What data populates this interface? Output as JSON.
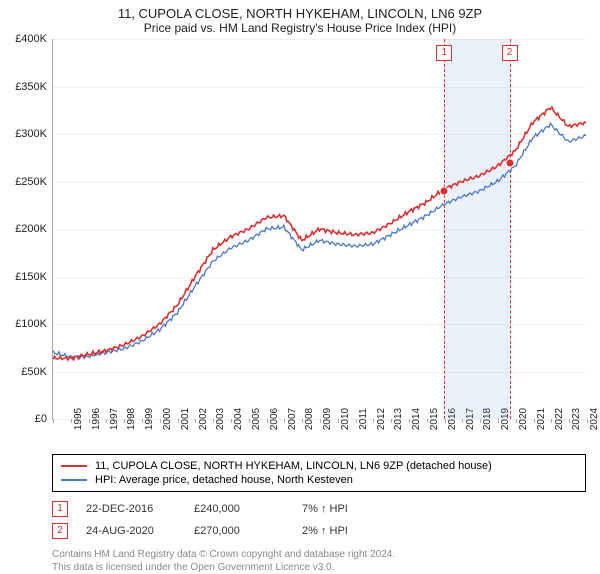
{
  "title_line1": "11, CUPOLA CLOSE, NORTH HYKEHAM, LINCOLN, LN6 9ZP",
  "title_line2": "Price paid vs. HM Land Registry's House Price Index (HPI)",
  "chart": {
    "type": "line",
    "x_start_year": 1995,
    "x_end_year": 2025,
    "xtick_years": [
      1995,
      1996,
      1997,
      1998,
      1999,
      2000,
      2001,
      2002,
      2003,
      2004,
      2005,
      2006,
      2007,
      2008,
      2009,
      2010,
      2011,
      2012,
      2013,
      2014,
      2015,
      2016,
      2017,
      2018,
      2019,
      2020,
      2021,
      2022,
      2023,
      2024,
      2025
    ],
    "ylim": [
      0,
      400000
    ],
    "ytick_step": 50000,
    "ytick_labels": [
      "£0",
      "£50K",
      "£100K",
      "£150K",
      "£200K",
      "£250K",
      "£300K",
      "£350K",
      "£400K"
    ],
    "grid_color": "#f0f0f0",
    "background_color": "#ffffff",
    "axis_color": "#888888",
    "tick_fontsize": 10,
    "series": [
      {
        "name": "11, CUPOLA CLOSE, NORTH HYKEHAM, LINCOLN, LN6 9ZP (detached house)",
        "color": "#d93030",
        "line_width": 1.6,
        "y_by_year": {
          "1995": 64000,
          "1996": 64000,
          "1997": 68000,
          "1998": 72000,
          "1999": 78000,
          "2000": 87000,
          "2001": 100000,
          "2002": 120000,
          "2003": 150000,
          "2004": 178000,
          "2005": 192000,
          "2006": 200000,
          "2007": 212000,
          "2008": 214000,
          "2009": 188000,
          "2010": 200000,
          "2011": 196000,
          "2012": 194000,
          "2013": 196000,
          "2014": 206000,
          "2015": 218000,
          "2016": 228000,
          "2017": 242000,
          "2018": 250000,
          "2019": 256000,
          "2020": 266000,
          "2021": 282000,
          "2022": 312000,
          "2023": 328000,
          "2024": 308000,
          "2025": 312000
        }
      },
      {
        "name": "HPI: Average price, detached house, North Kesteven",
        "color": "#4a78c8",
        "line_width": 1.3,
        "y_by_year": {
          "1995": 70000,
          "1996": 65000,
          "1997": 66000,
          "1998": 70000,
          "1999": 74000,
          "2000": 82000,
          "2001": 94000,
          "2002": 112000,
          "2003": 140000,
          "2004": 166000,
          "2005": 180000,
          "2006": 188000,
          "2007": 200000,
          "2008": 202000,
          "2009": 178000,
          "2010": 188000,
          "2011": 184000,
          "2012": 182000,
          "2013": 184000,
          "2014": 194000,
          "2015": 204000,
          "2016": 214000,
          "2017": 226000,
          "2018": 234000,
          "2019": 240000,
          "2020": 250000,
          "2021": 266000,
          "2022": 296000,
          "2023": 310000,
          "2024": 292000,
          "2025": 298000
        }
      }
    ],
    "shaded_band": {
      "from_year": 2016.98,
      "to_year": 2020.65,
      "color": "rgba(120,160,220,0.15)"
    },
    "sale_markers": [
      {
        "label": "1",
        "year": 2016.98,
        "price": 240000,
        "color": "#d93030"
      },
      {
        "label": "2",
        "year": 2020.65,
        "price": 270000,
        "color": "#d93030"
      }
    ]
  },
  "legend": {
    "items": [
      {
        "color": "#d93030",
        "label": "11, CUPOLA CLOSE, NORTH HYKEHAM, LINCOLN, LN6 9ZP (detached house)"
      },
      {
        "color": "#4a78c8",
        "label": "HPI: Average price, detached house, North Kesteven"
      }
    ]
  },
  "sales_table": {
    "rows": [
      {
        "label": "1",
        "color": "#d93030",
        "date": "22-DEC-2016",
        "price": "£240,000",
        "delta": "7% ↑ HPI"
      },
      {
        "label": "2",
        "color": "#d93030",
        "date": "24-AUG-2020",
        "price": "£270,000",
        "delta": "2% ↑ HPI"
      }
    ]
  },
  "footer_line1": "Contains HM Land Registry data © Crown copyright and database right 2024.",
  "footer_line2": "This data is licensed under the Open Government Licence v3.0."
}
